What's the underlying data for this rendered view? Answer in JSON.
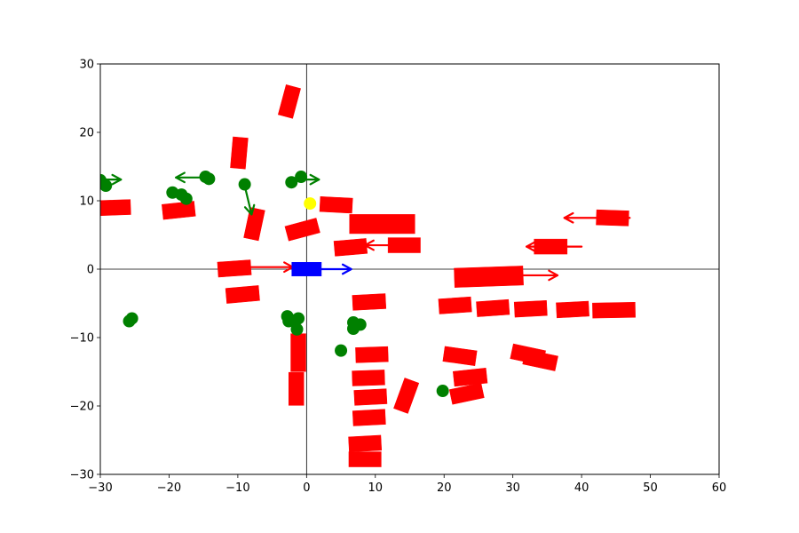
{
  "chart_data": {
    "type": "scatter",
    "title": "",
    "xlabel": "",
    "ylabel": "",
    "xlim": [
      -30,
      60
    ],
    "ylim": [
      -30,
      30
    ],
    "xticks": [
      -30,
      -20,
      -10,
      0,
      10,
      20,
      30,
      40,
      50,
      60
    ],
    "yticks": [
      -30,
      -20,
      -10,
      0,
      10,
      20,
      30
    ],
    "xtick_labels": [
      "−30",
      "−20",
      "−10",
      "0",
      "10",
      "20",
      "30",
      "40",
      "50",
      "60"
    ],
    "ytick_labels": [
      "−30",
      "−20",
      "−10",
      "0",
      "10",
      "20",
      "30"
    ],
    "zero_lines": true,
    "grid": false,
    "colors": {
      "ego": "#0000ff",
      "vehicle": "#ff0000",
      "pedestrian": "#008000",
      "target": "#ffff00"
    },
    "ego": {
      "x": 0,
      "y": 0,
      "length": 4.3,
      "width": 2.0,
      "angle": 0,
      "vx": 6.5,
      "vy": 0
    },
    "target_point": {
      "x": 0.5,
      "y": 9.6
    },
    "vehicles": [
      {
        "x": 11,
        "y": 6.6,
        "length": 9.5,
        "width": 2.8,
        "angle": 0
      },
      {
        "x": 26.5,
        "y": -1.1,
        "length": 10.0,
        "width": 2.8,
        "angle": 2
      },
      {
        "x": -2.5,
        "y": 24.5,
        "length": 4.5,
        "width": 2.2,
        "angle": 75
      },
      {
        "x": -9.8,
        "y": 17,
        "length": 4.5,
        "width": 2.2,
        "angle": 85
      },
      {
        "x": -7.6,
        "y": 6.6,
        "length": 4.5,
        "width": 2.2,
        "angle": 78
      },
      {
        "x": -0.6,
        "y": 5.8,
        "length": 4.7,
        "width": 2.2,
        "angle": 15
      },
      {
        "x": 4.3,
        "y": 9.4,
        "length": 4.7,
        "width": 2.2,
        "angle": -3
      },
      {
        "x": -28,
        "y": 9,
        "length": 4.8,
        "width": 2.2,
        "angle": 2
      },
      {
        "x": -18.6,
        "y": 8.6,
        "length": 4.7,
        "width": 2.2,
        "angle": 6
      },
      {
        "x": 6.4,
        "y": 3.2,
        "length": 4.7,
        "width": 2.2,
        "angle": 5
      },
      {
        "x": 14.2,
        "y": 3.5,
        "length": 4.7,
        "width": 2.2,
        "angle": 0
      },
      {
        "x": 35.5,
        "y": 3.3,
        "length": 4.8,
        "width": 2.2,
        "angle": 0
      },
      {
        "x": 44.5,
        "y": 7.5,
        "length": 4.7,
        "width": 2.2,
        "angle": -2
      },
      {
        "x": -10.5,
        "y": 0.1,
        "length": 4.8,
        "width": 2.2,
        "angle": 4
      },
      {
        "x": -9.3,
        "y": -3.7,
        "length": 4.8,
        "width": 2.2,
        "angle": 5
      },
      {
        "x": 9.1,
        "y": -4.8,
        "length": 4.8,
        "width": 2.2,
        "angle": 3
      },
      {
        "x": 21.6,
        "y": -5.3,
        "length": 4.7,
        "width": 2.2,
        "angle": 4
      },
      {
        "x": 27.1,
        "y": -5.7,
        "length": 4.7,
        "width": 2.2,
        "angle": 4
      },
      {
        "x": 32.6,
        "y": -5.8,
        "length": 4.7,
        "width": 2.2,
        "angle": 3
      },
      {
        "x": 38.7,
        "y": -5.9,
        "length": 4.7,
        "width": 2.2,
        "angle": 3
      },
      {
        "x": 44.7,
        "y": -6.0,
        "length": 6.2,
        "width": 2.2,
        "angle": 1
      },
      {
        "x": -1.2,
        "y": -12.2,
        "length": 5.5,
        "width": 2.2,
        "angle": 90
      },
      {
        "x": -1.5,
        "y": -17.5,
        "length": 4.8,
        "width": 2.2,
        "angle": 90
      },
      {
        "x": 9.5,
        "y": -12.5,
        "length": 4.7,
        "width": 2.2,
        "angle": 2
      },
      {
        "x": 9.0,
        "y": -15.9,
        "length": 4.7,
        "width": 2.2,
        "angle": 2
      },
      {
        "x": 9.3,
        "y": -18.7,
        "length": 4.7,
        "width": 2.2,
        "angle": 3
      },
      {
        "x": 9.1,
        "y": -21.7,
        "length": 4.7,
        "width": 2.2,
        "angle": 3
      },
      {
        "x": 8.5,
        "y": -25.5,
        "length": 4.7,
        "width": 2.2,
        "angle": 3
      },
      {
        "x": 8.5,
        "y": -27.8,
        "length": 4.7,
        "width": 2.2,
        "angle": 0
      },
      {
        "x": 14.5,
        "y": -18.5,
        "length": 4.7,
        "width": 2.2,
        "angle": 70
      },
      {
        "x": 22.3,
        "y": -12.7,
        "length": 4.7,
        "width": 2.2,
        "angle": -8
      },
      {
        "x": 23.8,
        "y": -15.8,
        "length": 4.8,
        "width": 2.2,
        "angle": 6
      },
      {
        "x": 23.3,
        "y": -18.2,
        "length": 4.7,
        "width": 2.2,
        "angle": 12
      },
      {
        "x": 32.2,
        "y": -12.5,
        "length": 4.8,
        "width": 2.2,
        "angle": -12
      },
      {
        "x": 34,
        "y": -13.3,
        "length": 4.8,
        "width": 2.2,
        "angle": -12
      }
    ],
    "vehicle_velocities": [
      {
        "x": -8.5,
        "y": 0.3,
        "vx": 6.5,
        "vy": 0
      },
      {
        "x": 15,
        "y": 3.5,
        "vx": -6.5,
        "vy": 0
      },
      {
        "x": 40,
        "y": 3.3,
        "vx": -8,
        "vy": 0
      },
      {
        "x": 47,
        "y": 7.5,
        "vx": -9.5,
        "vy": 0
      },
      {
        "x": 31,
        "y": -0.9,
        "vx": 5.5,
        "vy": 0
      }
    ],
    "pedestrians": [
      {
        "x": -30,
        "y": 13.0
      },
      {
        "x": -29.2,
        "y": 12.2
      },
      {
        "x": -19.5,
        "y": 11.2
      },
      {
        "x": -18.2,
        "y": 10.9
      },
      {
        "x": -17.5,
        "y": 10.3
      },
      {
        "x": -14.7,
        "y": 13.5
      },
      {
        "x": -14.2,
        "y": 13.2
      },
      {
        "x": -9.0,
        "y": 12.4
      },
      {
        "x": -2.2,
        "y": 12.7
      },
      {
        "x": -0.8,
        "y": 13.5
      },
      {
        "x": -25.8,
        "y": -7.6
      },
      {
        "x": -25.4,
        "y": -7.2
      },
      {
        "x": -2.8,
        "y": -6.9
      },
      {
        "x": -2.6,
        "y": -7.6
      },
      {
        "x": -1.8,
        "y": -7.5
      },
      {
        "x": -1.4,
        "y": -8.8
      },
      {
        "x": -1.2,
        "y": -7.2
      },
      {
        "x": 6.8,
        "y": -7.8
      },
      {
        "x": 6.8,
        "y": -8.7
      },
      {
        "x": 7.8,
        "y": -8.1
      },
      {
        "x": 5.0,
        "y": -11.9
      },
      {
        "x": 19.8,
        "y": -17.8
      }
    ],
    "pedestrian_velocities": [
      {
        "x": -30,
        "y": 13.1,
        "vx": 3,
        "vy": 0
      },
      {
        "x": -14.5,
        "y": 13.4,
        "vx": -4.5,
        "vy": 0
      },
      {
        "x": -9.0,
        "y": 12.2,
        "vx": 1.0,
        "vy": -4.2
      },
      {
        "x": -0.8,
        "y": 13.1,
        "vx": 2.6,
        "vy": 0
      }
    ]
  }
}
